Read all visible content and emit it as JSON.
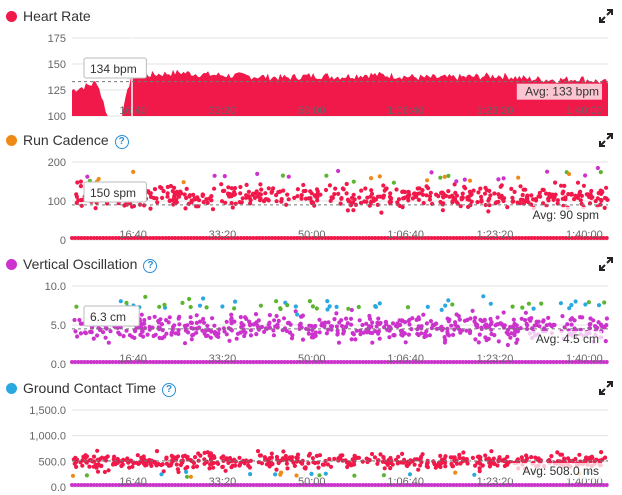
{
  "colors": {
    "hr": "#f0194a",
    "orange": "#ef8a17",
    "green": "#5cb531",
    "magenta": "#cc33cc",
    "blue": "#2aa8e0",
    "help": "#2a8fd6"
  },
  "icons": {
    "help": "help-circle-icon",
    "expand": "expand-arrows-icon"
  },
  "help_glyph": "?",
  "chart_data": [
    {
      "type": "area",
      "title": "Heart Rate",
      "dot_color": "#f0194a",
      "help": false,
      "yticks": [
        "175",
        "150",
        "125",
        "100"
      ],
      "ylim": [
        100,
        175
      ],
      "xlim": [
        0,
        6000
      ],
      "xticks": [
        "16:40",
        "33:20",
        "50:00",
        "1:06:40",
        "1:23:20",
        "1:40:00"
      ],
      "xtick_values": [
        1000,
        2000,
        3000,
        4000,
        5000,
        6000
      ],
      "tooltip": "134 bpm",
      "tooltip_x": 430,
      "avg_label": "Avg: 133 bpm",
      "avg": 133,
      "x": [
        0,
        200,
        280,
        400,
        560,
        620,
        680,
        900,
        1200,
        1500,
        1800,
        2100,
        2400,
        2700,
        3000,
        3300,
        3600,
        3900,
        4200,
        4500,
        4800,
        5100,
        5400,
        5700,
        6000,
        6150
      ],
      "y": [
        125,
        130,
        133,
        100,
        100,
        128,
        138,
        140,
        142,
        140,
        139,
        138,
        137,
        139,
        138,
        140,
        139,
        137,
        137,
        138,
        139,
        136,
        135,
        136,
        132,
        133
      ]
    },
    {
      "type": "scatter",
      "title": "Run Cadence",
      "dot_color": "#ef8a17",
      "help": true,
      "yticks": [
        "200",
        "100",
        "0"
      ],
      "ylim": [
        0,
        200
      ],
      "xlim": [
        0,
        6000
      ],
      "xticks": [
        "16:40",
        "33:20",
        "50:00",
        "1:06:40",
        "1:23:20",
        "1:40:00"
      ],
      "xtick_values": [
        1000,
        2000,
        3000,
        4000,
        5000,
        6000
      ],
      "tooltip": "150 spm",
      "tooltip_x": 430,
      "avg_label": "Avg: 90 spm",
      "avg": 90,
      "mean": 110,
      "spread": 22,
      "outlier_mean": 165,
      "outlier_spread": 15,
      "outlier_colors": [
        "#ef8a17",
        "#5cb531",
        "#cc33cc"
      ],
      "count": 520,
      "outliers": 34,
      "zero_line": true
    },
    {
      "type": "scatter",
      "title": "Vertical Oscillation",
      "dot_color": "#cc33cc",
      "help": true,
      "yticks": [
        "10.0",
        "5.0",
        "0.0"
      ],
      "ylim": [
        0,
        10
      ],
      "xlim": [
        0,
        6000
      ],
      "xticks": [
        "16:40",
        "33:20",
        "50:00",
        "1:06:40",
        "1:23:20",
        "1:40:00"
      ],
      "xtick_values": [
        1000,
        2000,
        3000,
        4000,
        5000,
        6000
      ],
      "tooltip": "6.3 cm",
      "tooltip_x": 430,
      "avg_label": "Avg: 4.5 cm",
      "avg": 4.5,
      "mean": 4.6,
      "spread": 1.2,
      "outlier_mean": 7.6,
      "outlier_spread": 0.6,
      "outlier_colors": [
        "#2aa8e0",
        "#5cb531"
      ],
      "count": 560,
      "outliers": 60,
      "zero_line": true
    },
    {
      "type": "scatter",
      "title": "Ground Contact Time",
      "dot_color": "#2aa8e0",
      "help": true,
      "yticks": [
        "1,500.0",
        "1,000.0",
        "500.0",
        "0.0"
      ],
      "ylim": [
        0,
        1500
      ],
      "xlim": [
        0,
        6000
      ],
      "xticks": [
        "16:40",
        "33:20",
        "50:00",
        "1:06:40",
        "1:23:20",
        "1:40:00"
      ],
      "xtick_values": [
        1000,
        2000,
        3000,
        4000,
        5000,
        6000
      ],
      "tooltip": "",
      "tooltip_x": 0,
      "avg_label": "Avg: 508.0 ms",
      "avg": 508,
      "mean": 500,
      "spread": 110,
      "outlier_mean": 240,
      "outlier_spread": 40,
      "outlier_colors": [
        "#ef8a17",
        "#5cb531",
        "#2aa8e0"
      ],
      "count": 520,
      "outliers": 22,
      "zero_line": true,
      "zero_color": "#cc33cc"
    }
  ]
}
